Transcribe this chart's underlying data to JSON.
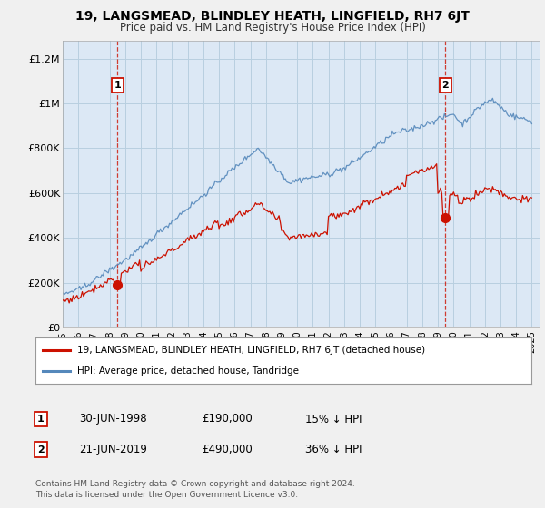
{
  "title": "19, LANGSMEAD, BLINDLEY HEATH, LINGFIELD, RH7 6JT",
  "subtitle": "Price paid vs. HM Land Registry's House Price Index (HPI)",
  "title_fontsize": 10,
  "subtitle_fontsize": 8.5,
  "ylabel_ticks": [
    "£0",
    "£200K",
    "£400K",
    "£600K",
    "£800K",
    "£1M",
    "£1.2M"
  ],
  "ytick_values": [
    0,
    200000,
    400000,
    600000,
    800000,
    1000000,
    1200000
  ],
  "ylim": [
    0,
    1280000
  ],
  "xlim_start": 1995.0,
  "xlim_end": 2025.5,
  "background_color": "#f0f0f0",
  "plot_bg_color": "#dce8f5",
  "grid_color": "#b8cfe0",
  "hpi_color": "#5588bb",
  "price_color": "#cc1100",
  "sale1_x": 1998.5,
  "sale1_y": 190000,
  "sale2_x": 2019.47,
  "sale2_y": 490000,
  "legend_line1": "19, LANGSMEAD, BLINDLEY HEATH, LINGFIELD, RH7 6JT (detached house)",
  "legend_line2": "HPI: Average price, detached house, Tandridge",
  "footnote": "Contains HM Land Registry data © Crown copyright and database right 2024.\nThis data is licensed under the Open Government Licence v3.0.",
  "xtick_years": [
    1995,
    1996,
    1997,
    1998,
    1999,
    2000,
    2001,
    2002,
    2003,
    2004,
    2005,
    2006,
    2007,
    2008,
    2009,
    2010,
    2011,
    2012,
    2013,
    2014,
    2015,
    2016,
    2017,
    2018,
    2019,
    2020,
    2021,
    2022,
    2023,
    2024,
    2025
  ]
}
